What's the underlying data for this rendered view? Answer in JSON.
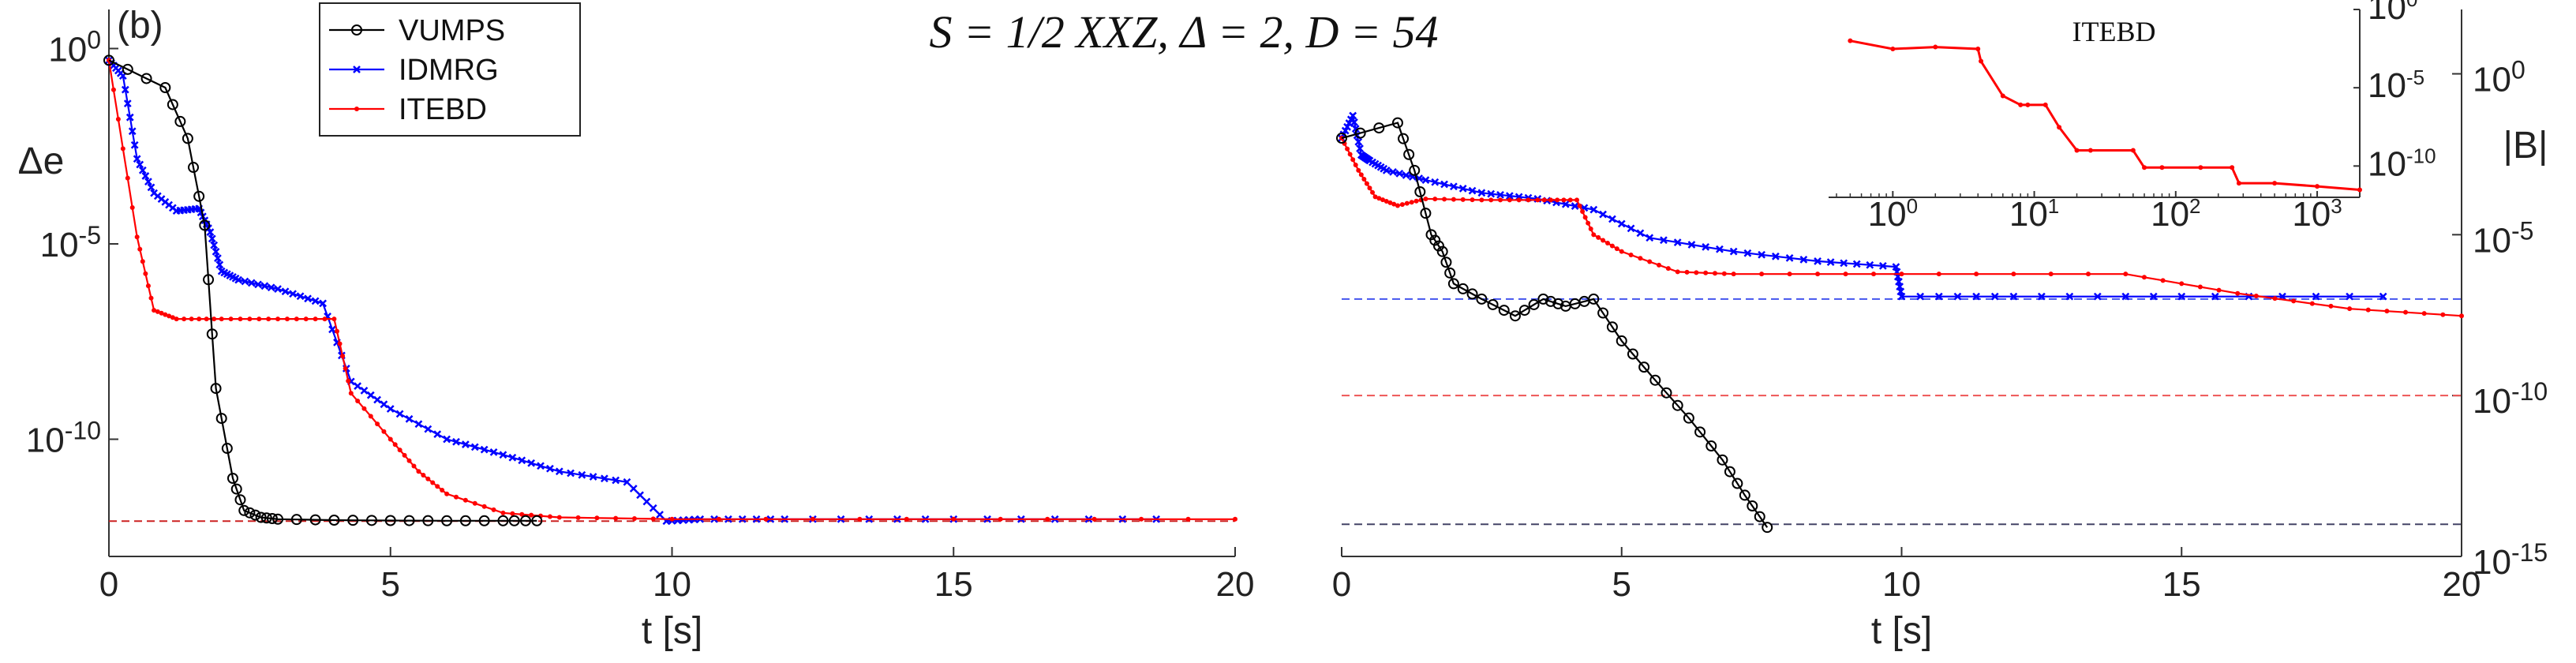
{
  "figure": {
    "title": "S = 1/2 XXZ, Δ = 2, D = 54",
    "panel_label": "(b)"
  },
  "legend": {
    "entries": [
      {
        "name": "VUMPS",
        "color": "#000000",
        "marker": "circle"
      },
      {
        "name": "IDMRG",
        "color": "#0000ff",
        "marker": "x"
      },
      {
        "name": "ITEBD",
        "color": "#ff0000",
        "marker": "dot"
      }
    ],
    "placement": "top-left"
  },
  "chart_data": [
    {
      "type": "line",
      "title": "",
      "xlabel": "t [s]",
      "ylabel": "Δe",
      "yscale": "log",
      "xlim": [
        0,
        20
      ],
      "ylim": [
        1e-13,
        10
      ],
      "xticks": [
        0,
        5,
        10,
        15,
        20
      ],
      "yticks": [
        {
          "value": 1,
          "label": "10^0"
        },
        {
          "value": 1e-05,
          "label": "10^-5"
        },
        {
          "value": 1e-10,
          "label": "10^-10"
        }
      ],
      "reference_line": {
        "y": 8e-13,
        "color": "#cc2222"
      },
      "series": [
        {
          "name": "VUMPS",
          "color": "#000000",
          "x": [
            0,
            1,
            1.4,
            1.7,
            1.9,
            2.2,
            2.4,
            2.7,
            3,
            4,
            5,
            6,
            7,
            7.6
          ],
          "y": [
            0.5,
            0.1,
            0.005,
            3e-05,
            2e-09,
            1e-11,
            1.5e-12,
            1e-12,
            9e-13,
            8.5e-13,
            8.3e-13,
            8.2e-13,
            8.2e-13,
            8.2e-13
          ]
        },
        {
          "name": "IDMRG",
          "color": "#0000ff",
          "x": [
            0,
            0.25,
            0.5,
            0.8,
            1.2,
            1.6,
            1.8,
            2.0,
            2.3,
            3.0,
            3.8,
            4.3,
            5.0,
            6.0,
            7.0,
            8.0,
            9.2,
            9.9,
            10.5,
            12,
            15,
            18.6
          ],
          "y": [
            0.5,
            0.2,
            0.0015,
            0.0002,
            7e-05,
            8e-05,
            2e-05,
            2e-06,
            1.2e-06,
            7e-07,
            3e-07,
            3e-09,
            6e-10,
            1e-10,
            4e-11,
            1.5e-11,
            8e-12,
            8e-13,
            9e-13,
            9e-13,
            9e-13,
            9e-13
          ]
        },
        {
          "name": "ITEBD",
          "color": "#ff0000",
          "x": [
            0,
            0.5,
            0.8,
            1.2,
            2,
            3,
            4,
            4.3,
            5,
            5.5,
            6,
            7,
            8,
            10,
            15,
            20
          ],
          "y": [
            0.5,
            1.5e-05,
            2e-07,
            1.2e-07,
            1.2e-07,
            1.2e-07,
            1.2e-07,
            1.5e-09,
            1e-10,
            1.5e-11,
            4e-12,
            1.3e-12,
            1e-12,
            9e-13,
            9e-13,
            9e-13
          ]
        }
      ]
    },
    {
      "type": "line",
      "title": "",
      "xlabel": "t [s]",
      "ylabel": "|B|",
      "yscale": "log",
      "yaxis_position": "right",
      "xlim": [
        0,
        20
      ],
      "ylim": [
        1e-15,
        100
      ],
      "xticks": [
        0,
        5,
        10,
        15,
        20
      ],
      "yticks": [
        {
          "value": 1,
          "label": "10^0"
        },
        {
          "value": 1e-05,
          "label": "10^-5"
        },
        {
          "value": 1e-10,
          "label": "10^-10"
        },
        {
          "value": 1e-15,
          "label": "10^-15"
        }
      ],
      "reference_lines": [
        {
          "y": 1e-07,
          "color": "#4455ee"
        },
        {
          "y": 1e-10,
          "color": "#ee5555"
        },
        {
          "y": 1e-14,
          "color": "#444466"
        }
      ],
      "series": [
        {
          "name": "VUMPS",
          "color": "#000000",
          "x": [
            0,
            1,
            1.3,
            1.6,
            1.8,
            2,
            2.5,
            3.1,
            3.6,
            4.0,
            4.5,
            5,
            5.6,
            6.2,
            6.8,
            7.2,
            7.6
          ],
          "y": [
            0.01,
            0.03,
            0.001,
            1e-05,
            3e-06,
            3e-07,
            1e-07,
            3e-08,
            1e-07,
            6e-08,
            1e-07,
            5e-09,
            3e-10,
            2e-11,
            1e-12,
            8e-14,
            8e-15
          ]
        },
        {
          "name": "IDMRG",
          "color": "#0000ff",
          "x": [
            0,
            0.2,
            0.35,
            0.5,
            0.8,
            1.5,
            2.5,
            3.5,
            4.5,
            5.5,
            7,
            8.5,
            9.9,
            10,
            12,
            15,
            18.6
          ],
          "y": [
            0.01,
            0.05,
            0.003,
            0.002,
            0.001,
            0.0005,
            0.0002,
            0.00013,
            6e-05,
            8e-06,
            3e-06,
            1.5e-06,
            1e-06,
            1.2e-07,
            1.2e-07,
            1.2e-07,
            1.2e-07
          ]
        },
        {
          "name": "ITEBD",
          "color": "#ff0000",
          "x": [
            0,
            0.3,
            0.6,
            1.0,
            1.5,
            2.5,
            3.5,
            4.2,
            4.5,
            5,
            6,
            7,
            10,
            14,
            16,
            18,
            20
          ],
          "y": [
            0.01,
            0.001,
            0.00015,
            8e-05,
            0.00013,
            0.00012,
            0.00012,
            0.00012,
            1e-05,
            3e-06,
            7e-07,
            6e-07,
            6e-07,
            6e-07,
            1.5e-07,
            5e-08,
            3e-08
          ]
        }
      ]
    },
    {
      "type": "line",
      "title": "ITEBD",
      "xlabel": "",
      "ylabel": "",
      "xscale": "log",
      "yscale": "log",
      "inset": true,
      "xlim": [
        0.4,
        2000
      ],
      "ylim": [
        1e-12,
        1
      ],
      "xticks": [
        {
          "value": 1,
          "label": "10^0"
        },
        {
          "value": 10,
          "label": "10^1"
        },
        {
          "value": 100,
          "label": "10^2"
        },
        {
          "value": 1000,
          "label": "10^3"
        }
      ],
      "yticks": [
        {
          "value": 1,
          "label": "10^0"
        },
        {
          "value": 1e-05,
          "label": "10^-5"
        },
        {
          "value": 1e-10,
          "label": "10^-10"
        }
      ],
      "series": [
        {
          "name": "ITEBD",
          "color": "#ff0000",
          "x": [
            0.5,
            1,
            2,
            4,
            4.2,
            6,
            8,
            9,
            12,
            15,
            20,
            25,
            50,
            60,
            80,
            150,
            250,
            280,
            500,
            1000,
            2000
          ],
          "y": [
            0.01,
            0.003,
            0.004,
            0.003,
            0.0005,
            3e-06,
            8e-07,
            8e-07,
            8e-07,
            3e-08,
            1e-09,
            1e-09,
            1e-09,
            8e-11,
            8e-11,
            8e-11,
            8e-11,
            8e-12,
            8e-12,
            5e-12,
            3e-12
          ]
        }
      ]
    }
  ]
}
